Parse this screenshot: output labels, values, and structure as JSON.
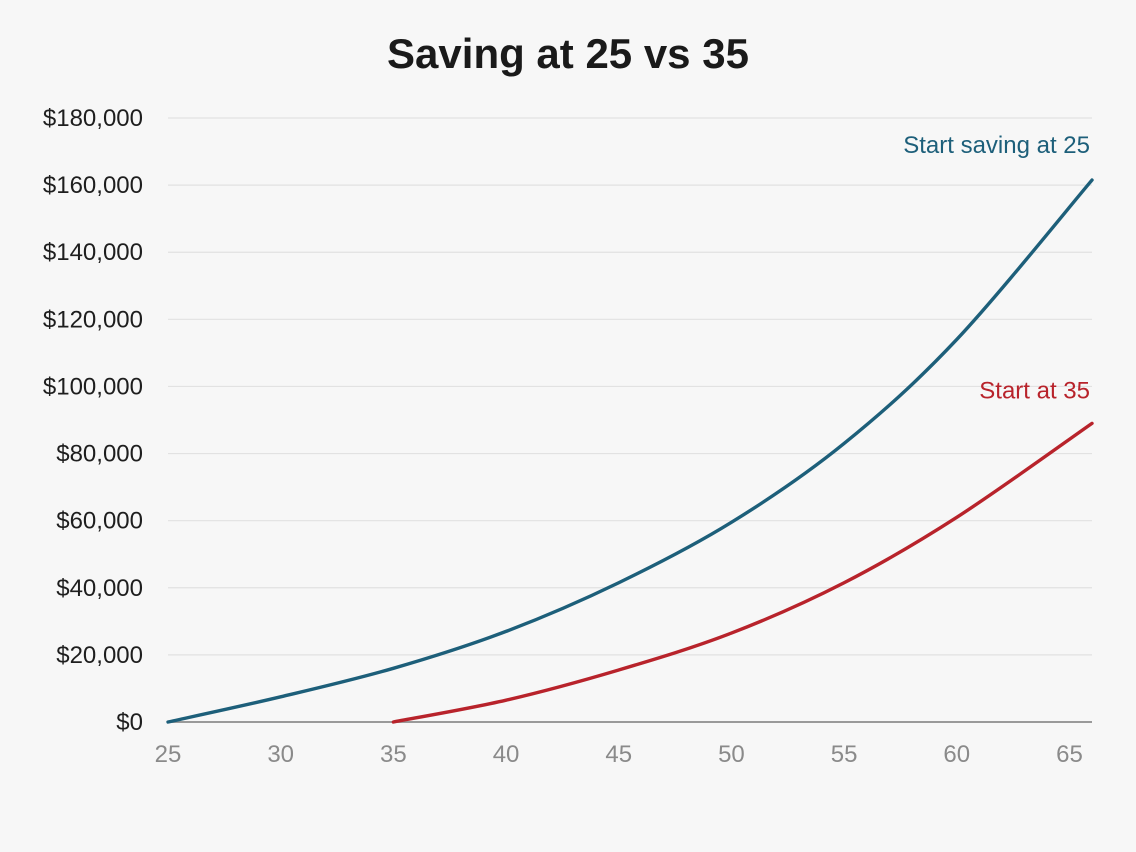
{
  "chart_data": {
    "type": "line",
    "title": "Saving at 25 vs 35",
    "xlabel": "",
    "ylabel": "",
    "xlim": [
      25,
      66
    ],
    "ylim": [
      0,
      180000
    ],
    "x_ticks": [
      25,
      30,
      35,
      40,
      45,
      50,
      55,
      60,
      65
    ],
    "y_ticks": [
      0,
      20000,
      40000,
      60000,
      80000,
      100000,
      120000,
      140000,
      160000,
      180000
    ],
    "y_tick_labels": [
      "$0",
      "$20,000",
      "$40,000",
      "$60,000",
      "$80,000",
      "$100,000",
      "$120,000",
      "$140,000",
      "$160,000",
      "$180,000"
    ],
    "grid": true,
    "series": [
      {
        "name": "Start saving at 25",
        "color": "#1d5f7a",
        "x": [
          25,
          30,
          35,
          40,
          45,
          50,
          55,
          60,
          66
        ],
        "y": [
          0,
          7500,
          16000,
          27000,
          41500,
          59500,
          83000,
          114000,
          161500
        ]
      },
      {
        "name": "Start at 35",
        "color": "#b8232b",
        "x": [
          35,
          40,
          45,
          50,
          55,
          60,
          66
        ],
        "y": [
          0,
          6500,
          15500,
          26500,
          41500,
          61000,
          89000
        ]
      }
    ]
  }
}
